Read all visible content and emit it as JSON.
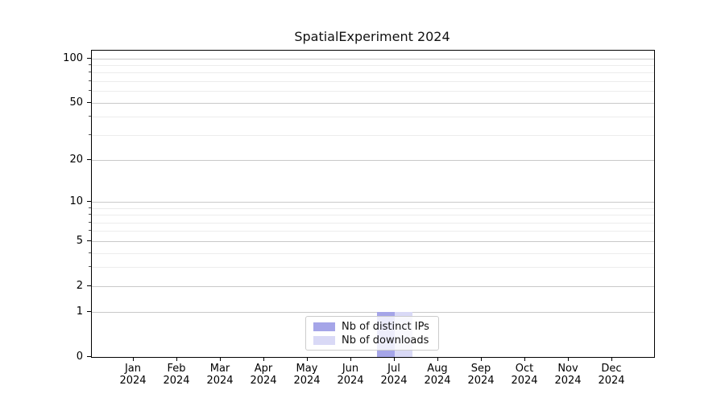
{
  "chart_data": {
    "type": "bar",
    "title": "SpatialExperiment 2024",
    "categories": [
      "Jan 2024",
      "Feb 2024",
      "Mar 2024",
      "Apr 2024",
      "May 2024",
      "Jun 2024",
      "Jul 2024",
      "Aug 2024",
      "Sep 2024",
      "Oct 2024",
      "Nov 2024",
      "Dec 2024"
    ],
    "series": [
      {
        "name": "Nb of distinct IPs",
        "color": "#a5a5e8",
        "values": [
          0,
          0,
          0,
          0,
          0,
          0,
          1,
          0,
          0,
          0,
          0,
          0
        ]
      },
      {
        "name": "Nb of downloads",
        "color": "#d9d9f6",
        "values": [
          0,
          0,
          0,
          0,
          0,
          0,
          1,
          0,
          0,
          0,
          0,
          0
        ]
      }
    ],
    "xlabel": "",
    "ylabel": "",
    "y_axis": {
      "scale": "log1p",
      "ticks": [
        0,
        1,
        2,
        5,
        10,
        20,
        50,
        100
      ],
      "minor_ticks": [
        3,
        4,
        6,
        7,
        8,
        9,
        30,
        40,
        60,
        70,
        80,
        90
      ],
      "ylim": [
        0,
        113
      ]
    },
    "grid": true,
    "legend_position": "lower center"
  },
  "colors": {
    "major_grid": "#c9c9c9",
    "minor_grid": "#ececec",
    "axis": "#000000",
    "background": "#ffffff"
  }
}
